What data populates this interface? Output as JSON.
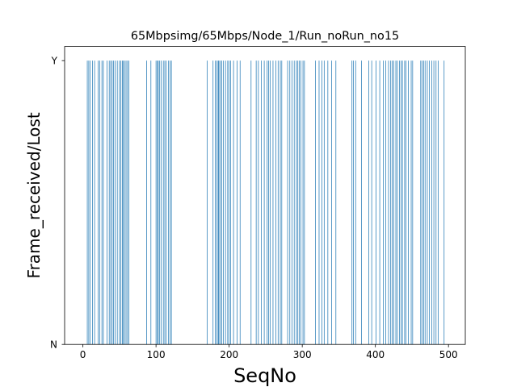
{
  "chart_data": {
    "type": "bar",
    "title": "65Mbpsimg/65Mbps/Node_1/Run_noRun_no15",
    "xlabel": "SeqNo",
    "ylabel": "Frame_received/Lost",
    "xlim": [
      -25,
      523
    ],
    "ylim": [
      0,
      1
    ],
    "x_ticks": [
      0,
      100,
      200,
      300,
      400,
      500
    ],
    "y_ticks": [
      {
        "value": 0,
        "label": "N"
      },
      {
        "value": 1,
        "label": "Y"
      }
    ],
    "grid": false,
    "bar_color": "#1f77b4",
    "received_seqnos": [
      6,
      8,
      10,
      13,
      16,
      21,
      23,
      26,
      28,
      33,
      36,
      38,
      40,
      42,
      44,
      47,
      50,
      52,
      54,
      55,
      57,
      59,
      61,
      63,
      87,
      93,
      100,
      102,
      103,
      105,
      107,
      110,
      112,
      114,
      117,
      119,
      121,
      170,
      178,
      181,
      183,
      185,
      186,
      188,
      190,
      192,
      195,
      198,
      200,
      202,
      206,
      211,
      215,
      230,
      237,
      240,
      244,
      248,
      252,
      254,
      256,
      260,
      264,
      267,
      270,
      272,
      280,
      283,
      286,
      289,
      292,
      294,
      296,
      298,
      301,
      303,
      318,
      323,
      327,
      330,
      335,
      340,
      346,
      368,
      370,
      373,
      381,
      391,
      395,
      401,
      406,
      411,
      414,
      418,
      421,
      423,
      425,
      428,
      430,
      433,
      435,
      437,
      440,
      442,
      445,
      449,
      451,
      462,
      464,
      466,
      468,
      471,
      474,
      477,
      480,
      483,
      486,
      494
    ]
  }
}
